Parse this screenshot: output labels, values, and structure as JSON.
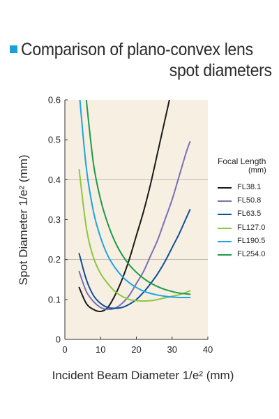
{
  "title": {
    "line1": "Comparison of plano-convex lens",
    "line2": "spot diameters"
  },
  "legend": {
    "title": "Focal Length",
    "unit": "(mm)"
  },
  "chart_data": {
    "type": "line",
    "title": "Comparison of plano-convex lens spot diameters",
    "xlabel": "Incident Beam Diameter  1/e² (mm)",
    "ylabel": "Spot Diameter 1/e² (mm)",
    "xlim": [
      0,
      40
    ],
    "ylim": [
      0,
      0.6
    ],
    "xticks": [
      0,
      10,
      20,
      30,
      40
    ],
    "yticks": [
      0,
      0.1,
      0.2,
      0.3,
      0.4,
      0.5,
      0.6
    ],
    "grid": "horizontal at 0.2 and 0.4",
    "background": "#f7efe2",
    "legend_position": "right",
    "series": [
      {
        "name": "FL38.1",
        "color": "#1a1a1a",
        "x": [
          4,
          6,
          8,
          10,
          12,
          14,
          16,
          18,
          20,
          22,
          24,
          26,
          28,
          30
        ],
        "y": [
          0.13,
          0.09,
          0.075,
          0.07,
          0.08,
          0.11,
          0.15,
          0.2,
          0.26,
          0.32,
          0.39,
          0.47,
          0.55,
          0.63
        ]
      },
      {
        "name": "FL50.8",
        "color": "#7b6fb8",
        "x": [
          4,
          6,
          8,
          10,
          12,
          14,
          16,
          18,
          20,
          22,
          24,
          26,
          28,
          30,
          32,
          34,
          35
        ],
        "y": [
          0.17,
          0.12,
          0.095,
          0.08,
          0.075,
          0.078,
          0.09,
          0.11,
          0.14,
          0.17,
          0.21,
          0.25,
          0.3,
          0.35,
          0.41,
          0.47,
          0.495
        ]
      },
      {
        "name": "FL63.5",
        "color": "#0d4f9a",
        "x": [
          4,
          6,
          8,
          10,
          12,
          14,
          16,
          18,
          20,
          22,
          24,
          26,
          28,
          30,
          32,
          34,
          35
        ],
        "y": [
          0.215,
          0.15,
          0.11,
          0.09,
          0.08,
          0.078,
          0.08,
          0.088,
          0.1,
          0.118,
          0.14,
          0.165,
          0.195,
          0.23,
          0.265,
          0.305,
          0.325
        ]
      },
      {
        "name": "FL127.0",
        "color": "#8dc63f",
        "x": [
          4,
          6,
          8,
          10,
          12,
          14,
          16,
          18,
          20,
          22,
          24,
          26,
          28,
          30,
          32,
          34,
          35
        ],
        "y": [
          0.425,
          0.28,
          0.205,
          0.165,
          0.14,
          0.12,
          0.108,
          0.1,
          0.097,
          0.096,
          0.097,
          0.1,
          0.104,
          0.108,
          0.112,
          0.118,
          0.122
        ]
      },
      {
        "name": "FL190.5",
        "color": "#1ea4e0",
        "x": [
          4,
          6,
          8,
          10,
          12,
          14,
          16,
          18,
          20,
          22,
          24,
          26,
          28,
          30,
          32,
          34,
          35
        ],
        "y": [
          0.62,
          0.43,
          0.32,
          0.255,
          0.21,
          0.18,
          0.158,
          0.142,
          0.13,
          0.121,
          0.115,
          0.111,
          0.108,
          0.106,
          0.105,
          0.105,
          0.105
        ]
      },
      {
        "name": "FL254.0",
        "color": "#1e9a4a",
        "x": [
          6,
          8,
          10,
          12,
          14,
          16,
          18,
          20,
          22,
          24,
          26,
          28,
          30,
          32,
          34,
          35
        ],
        "y": [
          0.6,
          0.44,
          0.35,
          0.29,
          0.245,
          0.212,
          0.187,
          0.168,
          0.153,
          0.141,
          0.132,
          0.125,
          0.12,
          0.116,
          0.114,
          0.113
        ]
      }
    ]
  }
}
